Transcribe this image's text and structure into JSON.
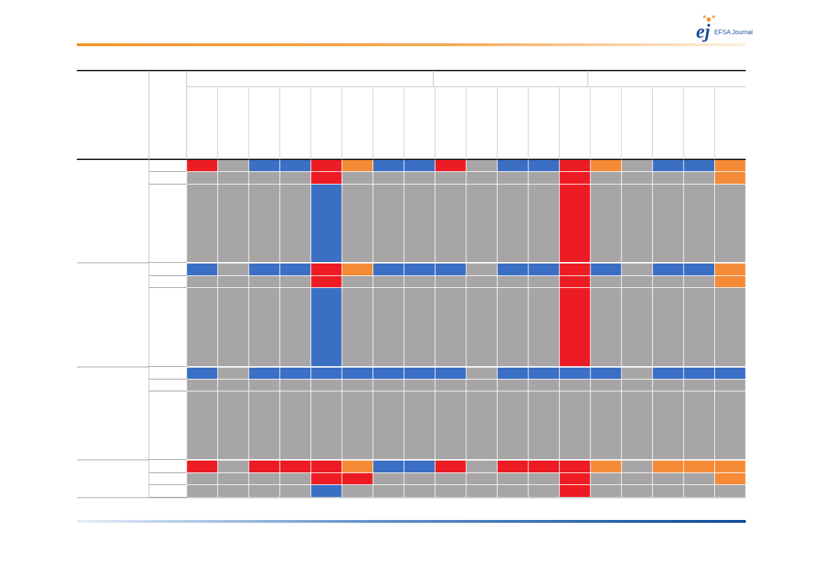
{
  "header": {
    "logo": "ej",
    "journal": "EFSA Journal"
  }
}
